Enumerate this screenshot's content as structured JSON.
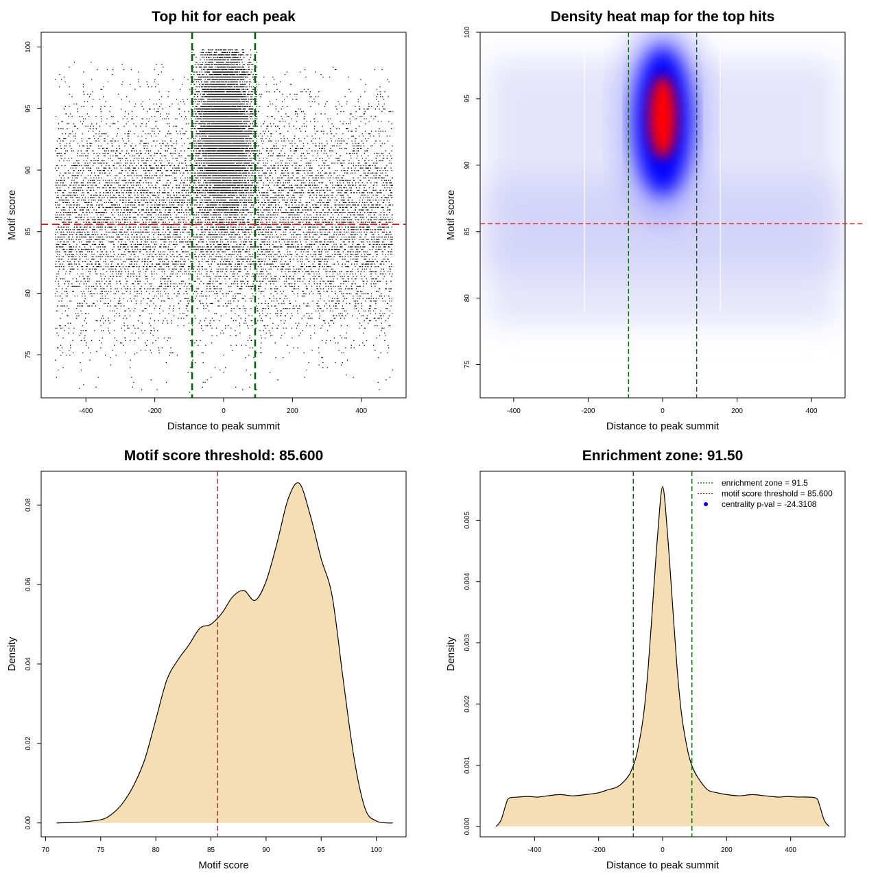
{
  "chart_data": [
    {
      "type": "scatter",
      "title": "Top hit for each peak",
      "xlabel": "Distance to peak summit",
      "ylabel": "Motif score",
      "xlim": [
        -530,
        530
      ],
      "ylim": [
        71.5,
        101.2
      ],
      "xticks": [
        -400,
        -200,
        0,
        200,
        400
      ],
      "yticks": [
        75,
        80,
        85,
        90,
        95,
        100
      ],
      "vlines": [
        -91.5,
        91.5
      ],
      "hline": 85.6,
      "colors": {
        "points": "#000000",
        "vlines": "#006400",
        "hline": "#e41a1c"
      },
      "points_description_values": {
        "background_x_range": [
          -490,
          490
        ],
        "background_y_range": [
          72,
          99
        ],
        "dense_cluster_center": [
          0,
          93.5
        ],
        "dense_cluster_x_range": [
          -91,
          91
        ]
      }
    },
    {
      "type": "heatmap",
      "title": "Density heat map for the top hits",
      "xlabel": "Distance to peak summit",
      "ylabel": "Motif score",
      "xlim": [
        -490,
        490
      ],
      "ylim": [
        72.5,
        100
      ],
      "xticks": [
        -400,
        -200,
        0,
        200,
        400
      ],
      "yticks": [
        75,
        80,
        85,
        90,
        95,
        100
      ],
      "vlines": [
        -91.5,
        91.5
      ],
      "hline": 85.6,
      "peak_center": [
        0,
        93.5
      ],
      "colors": {
        "low": "#ffffff",
        "mid": "#0000ff",
        "high": "#ff0000",
        "vlines": "#006400",
        "hline": "#e41a1c"
      }
    },
    {
      "type": "area",
      "title": "Motif score threshold: 85.600",
      "xlabel": "Motif score",
      "ylabel": "Density",
      "xlim": [
        69.6,
        102.7
      ],
      "ylim": [
        -0.0035,
        0.0885
      ],
      "xticks": [
        70,
        75,
        80,
        85,
        90,
        95,
        100
      ],
      "yticks": [
        0.0,
        0.02,
        0.04,
        0.06,
        0.08
      ],
      "ytick_labels": [
        "0.00",
        "0.02",
        "0.04",
        "0.06",
        "0.08"
      ],
      "vline": 85.6,
      "x": [
        71,
        73,
        75,
        76,
        77,
        78,
        79,
        80,
        81,
        82,
        83,
        84,
        85,
        86,
        87,
        88,
        89,
        90,
        91,
        92,
        93,
        94,
        95,
        96,
        97,
        98,
        99,
        100,
        101,
        101.5
      ],
      "y": [
        0,
        0.0002,
        0.0008,
        0.0022,
        0.005,
        0.0095,
        0.016,
        0.026,
        0.036,
        0.041,
        0.0448,
        0.049,
        0.05,
        0.0528,
        0.057,
        0.0585,
        0.056,
        0.0608,
        0.0705,
        0.0815,
        0.0855,
        0.0775,
        0.0665,
        0.057,
        0.036,
        0.016,
        0.0035,
        0.0005,
        0,
        0
      ],
      "colors": {
        "fill": "#f5deb3",
        "line": "#000000",
        "vline": "#b22222"
      }
    },
    {
      "type": "area",
      "title": "Enrichment zone: 91.50",
      "xlabel": "Distance to peak summit",
      "ylabel": "Density",
      "xlim": [
        -570,
        570
      ],
      "ylim": [
        -0.00017,
        0.0058
      ],
      "xticks": [
        -400,
        -200,
        0,
        200,
        400
      ],
      "yticks": [
        0.0,
        0.001,
        0.002,
        0.003,
        0.004,
        0.005
      ],
      "ytick_labels": [
        "0.000",
        "0.001",
        "0.002",
        "0.003",
        "0.004",
        "0.005"
      ],
      "vlines": [
        -91.5,
        91.5
      ],
      "x": [
        -520,
        -505,
        -490,
        -480,
        -450,
        -420,
        -390,
        -360,
        -320,
        -280,
        -240,
        -200,
        -170,
        -140,
        -110,
        -95,
        -80,
        -60,
        -45,
        -30,
        -15,
        0,
        15,
        30,
        45,
        60,
        80,
        95,
        110,
        140,
        170,
        200,
        240,
        280,
        320,
        360,
        390,
        420,
        450,
        480,
        490,
        505,
        520
      ],
      "y": [
        0,
        0.0001,
        0.00035,
        0.00046,
        0.00048,
        0.00049,
        0.00048,
        0.0005,
        0.00052,
        0.0005,
        0.00052,
        0.00055,
        0.0006,
        0.00065,
        0.0008,
        0.00095,
        0.0012,
        0.0018,
        0.0026,
        0.0037,
        0.0048,
        0.00555,
        0.0048,
        0.0037,
        0.0026,
        0.0018,
        0.0012,
        0.00095,
        0.0008,
        0.0006,
        0.00055,
        0.00052,
        0.0005,
        0.00052,
        0.0005,
        0.00048,
        0.00049,
        0.00048,
        0.00048,
        0.00046,
        0.00035,
        0.0001,
        0
      ],
      "legend": [
        {
          "label": "enrichment zone = 91.5",
          "style": "dotted",
          "color": "#006400"
        },
        {
          "label": "motif score threshold = 85.600",
          "style": "dotted",
          "color": "#e41a1c"
        },
        {
          "label": "centrality p-val = -24.3108",
          "style": "point",
          "color": "#0000ff"
        }
      ],
      "legend_position": "top-right",
      "colors": {
        "fill": "#f5deb3",
        "line": "#000000",
        "vlines": "#006400"
      }
    }
  ]
}
